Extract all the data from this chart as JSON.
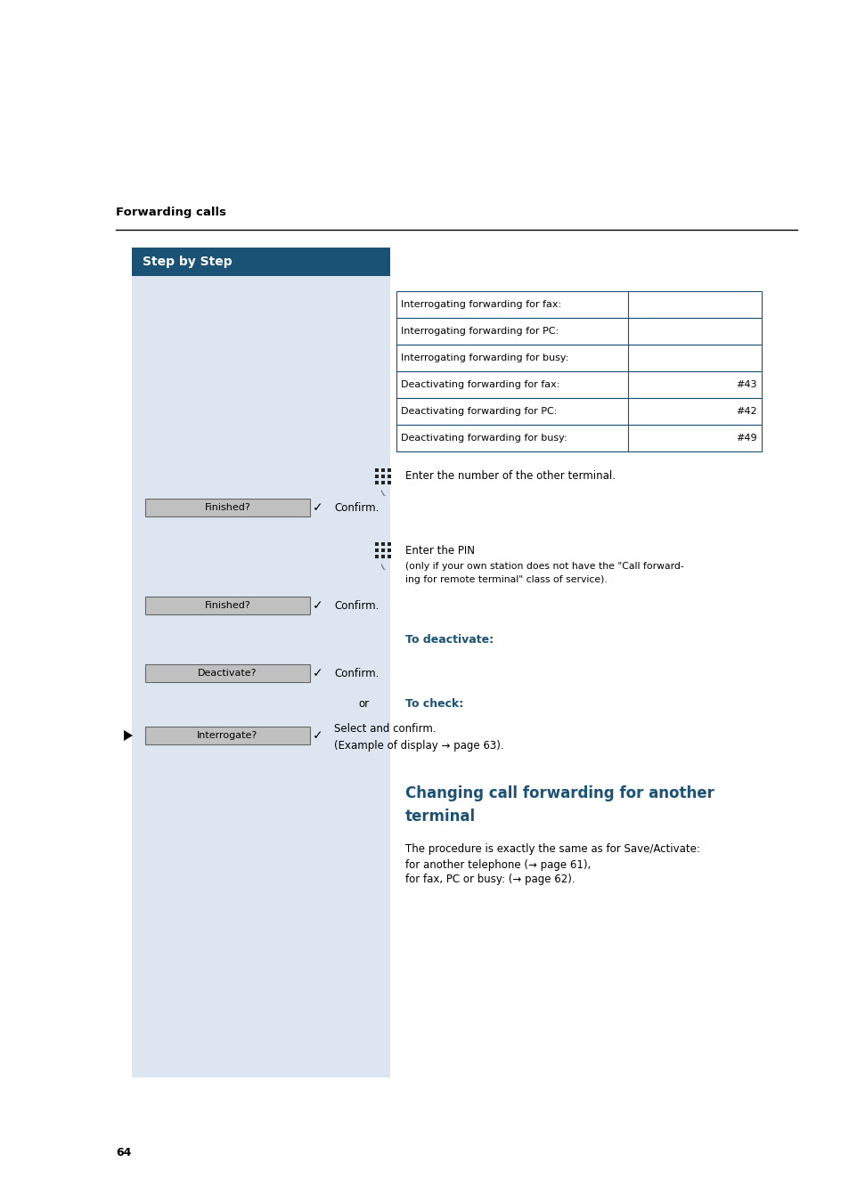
{
  "page_bg": "#ffffff",
  "left_panel_bg": "#dde6f0",
  "header_bg": "#1a5276",
  "header_text": "Step by Step",
  "header_text_color": "#ffffff",
  "section_title": "Forwarding calls",
  "page_number": "64",
  "table_rows": [
    {
      "label": "Interrogating forwarding for fax:",
      "value": ""
    },
    {
      "label": "Interrogating forwarding for PC:",
      "value": ""
    },
    {
      "label": "Interrogating forwarding for busy:",
      "value": ""
    },
    {
      "label": "Deactivating forwarding for fax:",
      "value": "#43"
    },
    {
      "label": "Deactivating forwarding for PC:",
      "value": "#42"
    },
    {
      "label": "Deactivating forwarding for busy:",
      "value": "#49"
    }
  ],
  "table_border_color": "#1a5276",
  "btn_face": "#c0c0c0",
  "btn_edge": "#666666",
  "blue_heading": "#1a5276"
}
